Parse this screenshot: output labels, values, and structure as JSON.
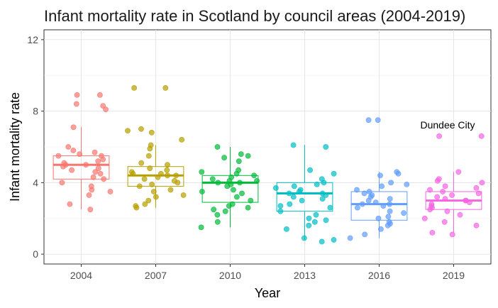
{
  "chart_data": {
    "type": "box",
    "title": "Infant mortality rate in Scotland by council areas (2004-2019)",
    "xlabel": "Year",
    "ylabel": "Infant mortality rate",
    "categories": [
      "2004",
      "2007",
      "2010",
      "2013",
      "2016",
      "2019"
    ],
    "y_ticks": [
      0,
      4,
      8,
      12
    ],
    "ylim": [
      -0.55,
      12.55
    ],
    "grid": true,
    "legend": "none",
    "colors": [
      "#F8766D",
      "#B79F00",
      "#00BA38",
      "#00BFC4",
      "#619CFF",
      "#F564E3"
    ],
    "series": [
      {
        "category": "2004",
        "box": {
          "min": 2.5,
          "q1": 4.2,
          "median": 5.0,
          "q3": 5.5,
          "max": 7.1
        },
        "points": [
          2.5,
          2.8,
          3.3,
          3.5,
          3.6,
          3.8,
          4.0,
          4.2,
          4.3,
          4.5,
          4.6,
          4.7,
          4.8,
          4.9,
          5.0,
          5.0,
          5.1,
          5.2,
          5.3,
          5.5,
          5.5,
          5.6,
          5.7,
          5.8,
          6.0,
          7.1,
          8.1,
          8.3,
          8.4,
          8.9,
          8.9
        ]
      },
      {
        "category": "2007",
        "box": {
          "min": 2.6,
          "q1": 3.8,
          "median": 4.4,
          "q3": 4.9,
          "max": 6.1
        },
        "points": [
          2.6,
          2.7,
          2.8,
          3.0,
          3.2,
          3.3,
          3.5,
          3.6,
          3.8,
          3.9,
          4.0,
          4.1,
          4.2,
          4.3,
          4.4,
          4.4,
          4.5,
          4.5,
          4.6,
          4.7,
          4.8,
          5.0,
          5.1,
          5.5,
          5.9,
          6.1,
          6.4,
          6.8,
          6.9,
          7.0,
          9.3,
          9.3
        ]
      },
      {
        "category": "2010",
        "box": {
          "min": 1.5,
          "q1": 2.9,
          "median": 4.0,
          "q3": 4.4,
          "max": 6.0
        },
        "points": [
          1.5,
          1.8,
          2.2,
          2.4,
          2.5,
          2.6,
          2.7,
          2.8,
          3.0,
          3.2,
          3.4,
          3.5,
          3.6,
          3.8,
          3.9,
          4.0,
          4.0,
          4.1,
          4.1,
          4.2,
          4.3,
          4.4,
          4.5,
          4.6,
          4.7,
          5.2,
          5.4,
          5.5,
          5.6,
          6.0
        ]
      },
      {
        "category": "2013",
        "box": {
          "min": 0.8,
          "q1": 2.4,
          "median": 3.4,
          "q3": 4.0,
          "max": 6.1
        },
        "points": [
          0.7,
          0.8,
          0.9,
          1.4,
          1.6,
          1.8,
          1.9,
          2.0,
          2.2,
          2.4,
          2.6,
          2.7,
          2.8,
          3.0,
          3.1,
          3.2,
          3.3,
          3.4,
          3.4,
          3.5,
          3.6,
          3.7,
          3.8,
          3.9,
          4.0,
          4.2,
          4.5,
          4.7,
          6.0,
          6.1
        ]
      },
      {
        "category": "2016",
        "box": {
          "min": 0.9,
          "q1": 1.9,
          "median": 2.8,
          "q3": 3.5,
          "max": 4.6
        },
        "points": [
          0.9,
          1.1,
          1.4,
          1.6,
          1.7,
          1.8,
          2.0,
          2.1,
          2.3,
          2.4,
          2.6,
          2.7,
          2.8,
          2.8,
          2.9,
          3.0,
          3.1,
          3.2,
          3.3,
          3.4,
          3.5,
          3.6,
          3.8,
          3.9,
          4.0,
          4.4,
          4.5,
          4.6,
          7.5,
          7.5
        ]
      },
      {
        "category": "2019",
        "box": {
          "min": 1.2,
          "q1": 2.5,
          "median": 3.0,
          "q3": 3.5,
          "max": 4.6
        },
        "points": [
          1.1,
          1.2,
          1.6,
          1.8,
          2.0,
          2.2,
          2.4,
          2.5,
          2.6,
          2.7,
          2.8,
          2.9,
          3.0,
          3.0,
          3.1,
          3.2,
          3.3,
          3.4,
          3.5,
          3.6,
          3.7,
          3.8,
          4.0,
          4.1,
          4.2,
          4.6,
          6.6,
          6.6
        ]
      }
    ],
    "annotations": [
      {
        "text": "Dundee City",
        "x": "2019",
        "y": 7.1
      }
    ]
  }
}
